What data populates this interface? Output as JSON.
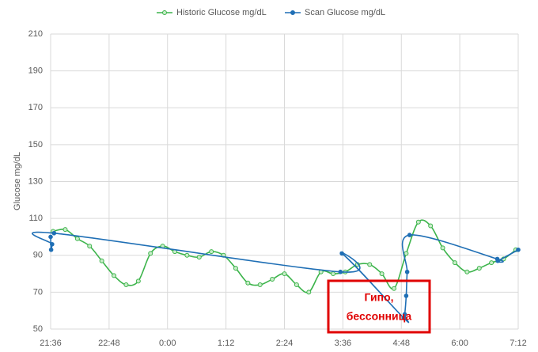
{
  "chart_data": {
    "type": "line",
    "y_label": "Glucose mg/dL",
    "xlim": [
      21.6,
      31.2
    ],
    "xticks": [
      {
        "value": 21.6,
        "label": "21:36"
      },
      {
        "value": 22.8,
        "label": "22:48"
      },
      {
        "value": 24,
        "label": "0:00"
      },
      {
        "value": 25.2,
        "label": "1:12"
      },
      {
        "value": 26.4,
        "label": "2:24"
      },
      {
        "value": 27.6,
        "label": "3:36"
      },
      {
        "value": 28.8,
        "label": "4:48"
      },
      {
        "value": 30,
        "label": "6:00"
      },
      {
        "value": 31.2,
        "label": "7:12"
      }
    ],
    "ylim": [
      50,
      210
    ],
    "yticks": [
      50,
      70,
      90,
      110,
      130,
      150,
      170,
      190,
      210
    ],
    "grid": true,
    "series": [
      {
        "name": "Historic Glucose mg/dL",
        "color": "#3cb44b",
        "x": [
          21.65,
          21.9,
          22.15,
          22.4,
          22.65,
          22.9,
          23.15,
          23.4,
          23.65,
          23.9,
          24.15,
          24.4,
          24.65,
          24.9,
          25.15,
          25.4,
          25.65,
          25.9,
          26.15,
          26.4,
          26.65,
          26.9,
          27.15,
          27.4,
          27.65,
          27.9,
          28.15,
          28.4,
          28.65,
          28.9,
          29.15,
          29.4,
          29.65,
          29.9,
          30.15,
          30.4,
          30.65,
          30.9,
          31.15
        ],
        "values": [
          103,
          104,
          99,
          95,
          87,
          79,
          74,
          76,
          91,
          95,
          92,
          90,
          89,
          92,
          90,
          83,
          75,
          74,
          77,
          80,
          74,
          70,
          81,
          80,
          81,
          85,
          85,
          80,
          72,
          91,
          108,
          106,
          94,
          86,
          81,
          83,
          86,
          88,
          93
        ]
      },
      {
        "name": "Scan Glucose mg/dL",
        "color": "#1f6fb5",
        "x": [
          21.6,
          21.61,
          21.63,
          21.67,
          27.55,
          27.58,
          28.85,
          28.87,
          28.9,
          28.92,
          28.97,
          30.77,
          30.78,
          31.2
        ],
        "values": [
          100,
          93,
          96,
          102,
          81,
          91,
          56,
          58,
          68,
          81,
          101,
          88,
          87,
          93
        ]
      }
    ],
    "annotation": [
      "Гипо,",
      "бессонница"
    ]
  }
}
